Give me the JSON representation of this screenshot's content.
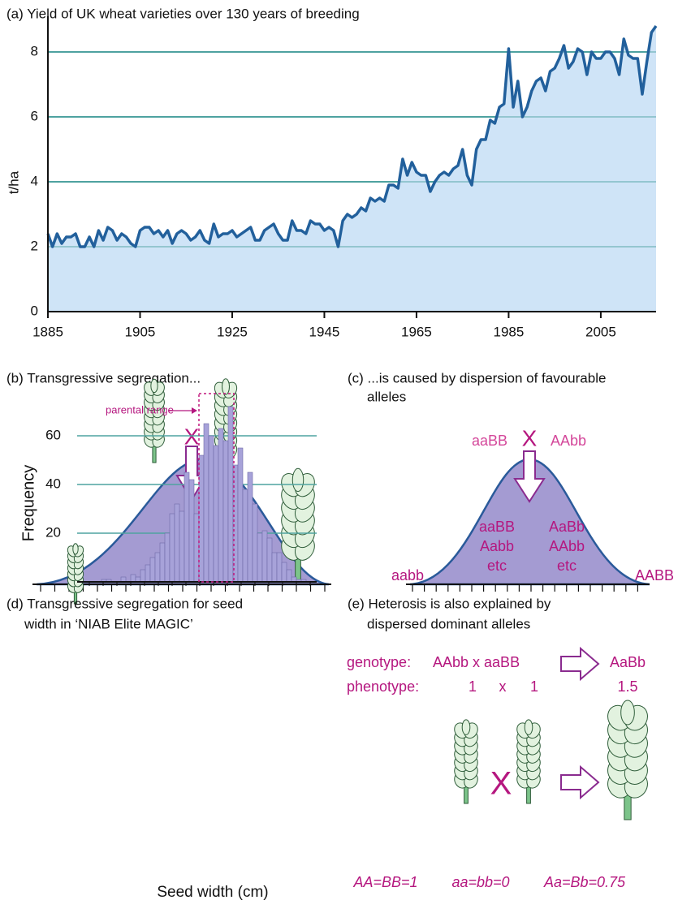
{
  "chart_data": [
    {
      "type": "area",
      "title": "(a) Yield of UK wheat varieties over 130 years of breeding",
      "ylabel": "t/ha",
      "x": [
        1885,
        1886,
        1887,
        1888,
        1889,
        1890,
        1891,
        1892,
        1893,
        1894,
        1895,
        1896,
        1897,
        1898,
        1899,
        1900,
        1901,
        1902,
        1903,
        1904,
        1905,
        1906,
        1907,
        1908,
        1909,
        1910,
        1911,
        1912,
        1913,
        1914,
        1915,
        1916,
        1917,
        1918,
        1919,
        1920,
        1921,
        1922,
        1923,
        1924,
        1925,
        1926,
        1927,
        1928,
        1929,
        1930,
        1931,
        1932,
        1933,
        1934,
        1935,
        1936,
        1937,
        1938,
        1939,
        1940,
        1941,
        1942,
        1943,
        1944,
        1945,
        1946,
        1947,
        1948,
        1949,
        1950,
        1951,
        1952,
        1953,
        1954,
        1955,
        1956,
        1957,
        1958,
        1959,
        1960,
        1961,
        1962,
        1963,
        1964,
        1965,
        1966,
        1967,
        1968,
        1969,
        1970,
        1971,
        1972,
        1973,
        1974,
        1975,
        1976,
        1977,
        1978,
        1979,
        1980,
        1981,
        1982,
        1983,
        1984,
        1985,
        1986,
        1987,
        1988,
        1989,
        1990,
        1991,
        1992,
        1993,
        1994,
        1995,
        1996,
        1997,
        1998,
        1999,
        2000,
        2001,
        2002,
        2003,
        2004,
        2005,
        2006,
        2007,
        2008,
        2009,
        2010,
        2011,
        2012,
        2013,
        2014,
        2015,
        2016,
        2017
      ],
      "values": [
        2.4,
        2.0,
        2.4,
        2.1,
        2.3,
        2.3,
        2.4,
        2.0,
        2.0,
        2.3,
        2.0,
        2.5,
        2.2,
        2.6,
        2.5,
        2.2,
        2.4,
        2.3,
        2.1,
        2.0,
        2.5,
        2.6,
        2.6,
        2.4,
        2.5,
        2.3,
        2.5,
        2.1,
        2.4,
        2.5,
        2.4,
        2.2,
        2.3,
        2.5,
        2.2,
        2.1,
        2.7,
        2.3,
        2.4,
        2.4,
        2.5,
        2.3,
        2.4,
        2.5,
        2.6,
        2.2,
        2.2,
        2.5,
        2.6,
        2.7,
        2.4,
        2.2,
        2.2,
        2.8,
        2.5,
        2.5,
        2.4,
        2.8,
        2.7,
        2.7,
        2.5,
        2.6,
        2.5,
        2.0,
        2.8,
        3.0,
        2.9,
        3.0,
        3.2,
        3.1,
        3.5,
        3.4,
        3.5,
        3.4,
        3.9,
        3.9,
        3.8,
        4.7,
        4.2,
        4.6,
        4.3,
        4.2,
        4.2,
        3.7,
        4.0,
        4.2,
        4.3,
        4.2,
        4.4,
        4.5,
        5.0,
        4.2,
        3.9,
        5.0,
        5.3,
        5.3,
        5.9,
        5.8,
        6.3,
        6.4,
        8.1,
        6.3,
        7.1,
        6.0,
        6.3,
        6.8,
        7.1,
        7.2,
        6.8,
        7.4,
        7.5,
        7.8,
        8.2,
        7.5,
        7.7,
        8.1,
        8.0,
        7.3,
        8.0,
        7.8,
        7.8,
        8.0,
        8.0,
        7.8,
        7.3,
        8.4,
        7.9,
        7.8,
        7.8,
        6.7,
        7.7,
        8.6,
        8.8
      ],
      "xlim": [
        1885,
        2017
      ],
      "ylim": [
        0,
        9
      ],
      "xticks": [
        1885,
        1905,
        1925,
        1945,
        1965,
        1985,
        2005
      ],
      "yticks": [
        0,
        2,
        4,
        6,
        8
      ],
      "grid": true,
      "color": "#22609c",
      "fill": "#cfe4f7",
      "grid_color": "#4fa3a0"
    },
    {
      "type": "bar",
      "title": [
        "(d) Transgressive segregation for seed",
        "width in ‘NIAB Elite MAGIC’"
      ],
      "xlabel": "Seed width (cm)",
      "ylabel": "Frequency",
      "annotation": "parental range",
      "categories": [
        null,
        null,
        null,
        null,
        null,
        null,
        null,
        null,
        null,
        null,
        null,
        null,
        null,
        null,
        null,
        null,
        null,
        null,
        null,
        null,
        null,
        null,
        null,
        null,
        null,
        null,
        null,
        null,
        null,
        null,
        null,
        null,
        null,
        null,
        null,
        null,
        null,
        null,
        null,
        null,
        null,
        null
      ],
      "values": [
        1,
        1,
        0,
        0,
        2,
        0,
        3,
        2,
        5,
        7,
        10,
        12,
        16,
        20,
        28,
        32,
        29,
        45,
        42,
        28,
        52,
        65,
        60,
        56,
        63,
        58,
        72,
        48,
        55,
        38,
        45,
        32,
        20,
        21,
        18,
        12,
        12,
        8,
        5,
        2,
        1,
        1
      ],
      "ylim": [
        0,
        78
      ],
      "yticks": [
        20,
        40,
        60
      ],
      "grid": true,
      "color": "#a7a2d9",
      "grid_color": "#4fa3a0"
    }
  ],
  "panels": {
    "b": {
      "title": "(b) Transgressive segregation...",
      "cross": "X"
    },
    "c": {
      "title": [
        "(c) ...is caused by dispersion of favourable",
        "alleles"
      ],
      "parent_left": "aaBB",
      "cross": "X",
      "parent_right": "AAbb",
      "middle_left": [
        "aaBB",
        "Aabb",
        "etc"
      ],
      "middle_right": [
        "AaBb",
        "AAbb",
        "etc"
      ],
      "low_end": "aabb",
      "high_end": "AABB"
    },
    "e": {
      "title": [
        "(e) Heterosis is also explained by",
        "dispersed dominant alleles"
      ],
      "genotype_label": "genotype:",
      "genotype_cross": "AAbb x aaBB",
      "genotype_result": "AaBb",
      "phenotype_label": "phenotype:",
      "phenotype_left": "1",
      "phenotype_x": "x",
      "phenotype_right": "1",
      "phenotype_result": "1.5",
      "cross": "X",
      "key": [
        "AA=BB=1",
        "aa=bb=0",
        "Aa=Bb=0.75"
      ]
    }
  }
}
